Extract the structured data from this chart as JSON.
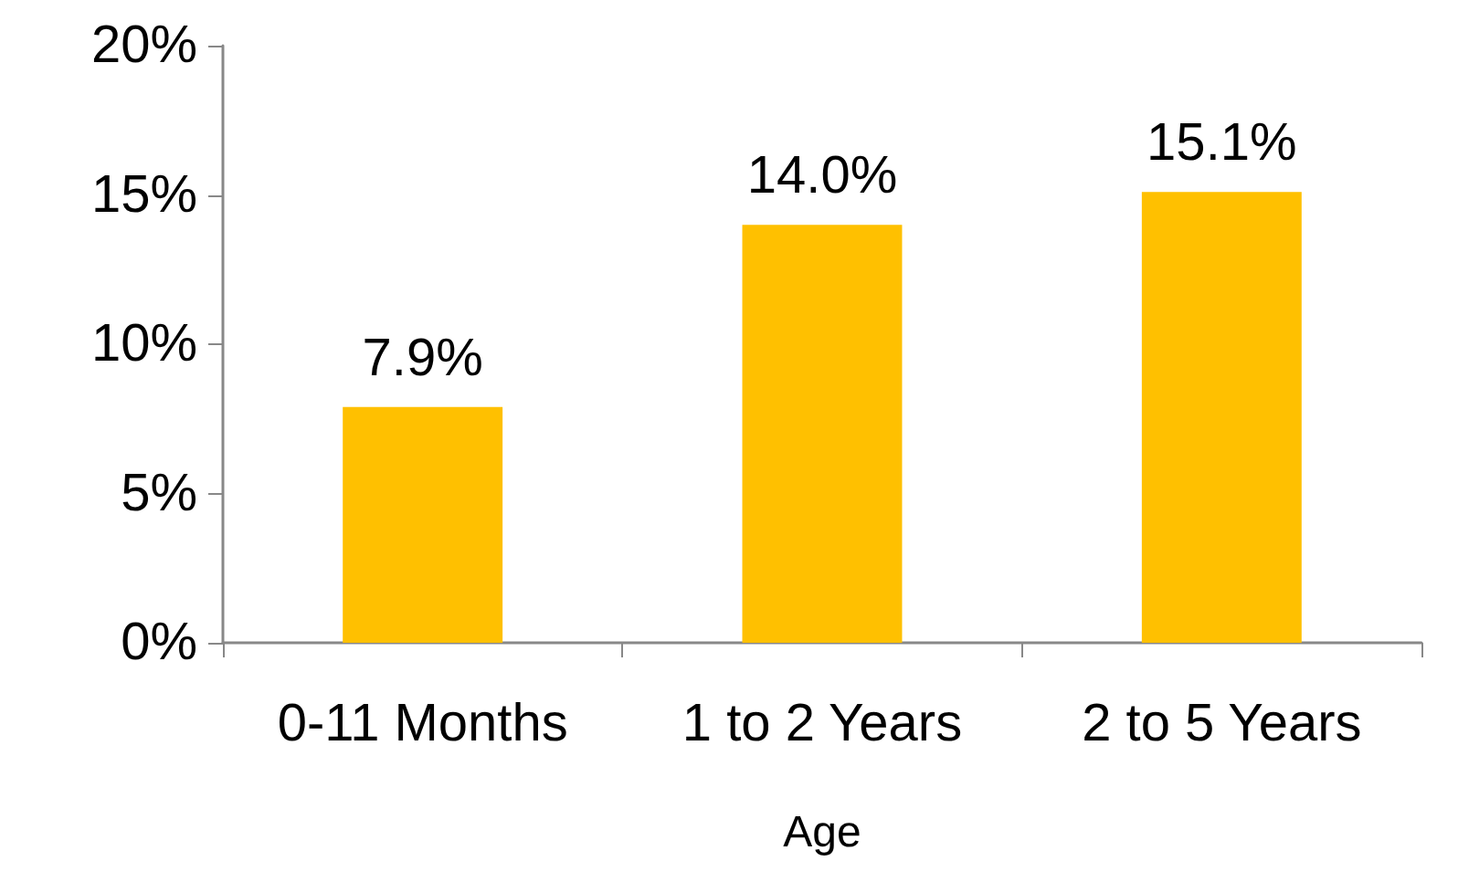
{
  "chart_data": {
    "type": "bar",
    "xlabel": "Age",
    "categories": [
      "0-11 Months",
      "1 to 2 Years",
      "2 to 5 Years"
    ],
    "values": [
      7.9,
      14.0,
      15.1
    ],
    "value_labels": [
      "7.9%",
      "14.0%",
      "15.1%"
    ],
    "color": "#ffc000",
    "ylim": [
      0,
      20
    ],
    "yticks": [
      {
        "value": 0,
        "label": "0%"
      },
      {
        "value": 5,
        "label": "5%"
      },
      {
        "value": 10,
        "label": "10%"
      },
      {
        "value": 15,
        "label": "15%"
      },
      {
        "value": 20,
        "label": "20%"
      }
    ],
    "grid": false
  }
}
